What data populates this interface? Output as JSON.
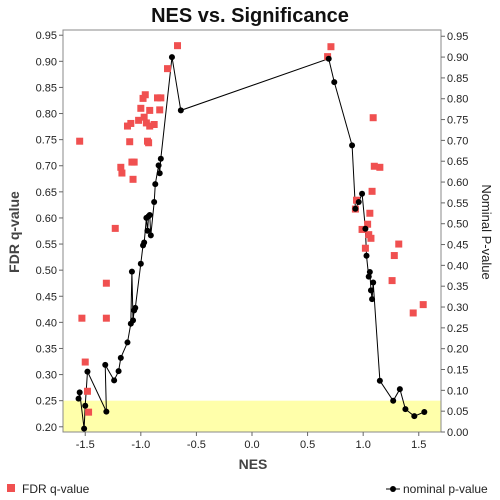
{
  "chart_data": {
    "type": "scatter",
    "title": "NES vs. Significance",
    "xlabel": "NES",
    "ylabel": "FDR q-value",
    "ylabel_right": "Nominal P-value",
    "xlim": [
      -1.7,
      1.7
    ],
    "ylim_left": [
      0.19,
      0.96
    ],
    "ylim_right": [
      0.0,
      0.965
    ],
    "x_ticks": [
      "-1.5",
      "-1.0",
      "-0.5",
      "0.0",
      "0.5",
      "1.0",
      "1.5"
    ],
    "y_left_ticks": [
      "0.20",
      "0.25",
      "0.30",
      "0.35",
      "0.40",
      "0.45",
      "0.50",
      "0.55",
      "0.60",
      "0.65",
      "0.70",
      "0.75",
      "0.80",
      "0.85",
      "0.90",
      "0.95"
    ],
    "y_right_ticks": [
      "0.00",
      "0.05",
      "0.10",
      "0.15",
      "0.20",
      "0.25",
      "0.30",
      "0.35",
      "0.40",
      "0.45",
      "0.50",
      "0.55",
      "0.60",
      "0.65",
      "0.70",
      "0.75",
      "0.80",
      "0.85",
      "0.90",
      "0.95"
    ],
    "grid": false,
    "highlight_band": {
      "y_left_from": 0.19,
      "y_left_to": 0.25,
      "color": "#ffffaa"
    },
    "legend_position": "bottom",
    "series": [
      {
        "name": "FDR q-value",
        "axis": "left",
        "style": "square",
        "color": "#f05050",
        "points": [
          [
            -1.55,
            0.747
          ],
          [
            -1.53,
            0.408
          ],
          [
            -1.5,
            0.324
          ],
          [
            -1.48,
            0.268
          ],
          [
            -1.47,
            0.228
          ],
          [
            -1.31,
            0.475
          ],
          [
            -1.31,
            0.408
          ],
          [
            -1.23,
            0.58
          ],
          [
            -1.18,
            0.697
          ],
          [
            -1.17,
            0.686
          ],
          [
            -1.12,
            0.776
          ],
          [
            -1.1,
            0.746
          ],
          [
            -1.09,
            0.781
          ],
          [
            -1.08,
            0.707
          ],
          [
            -1.07,
            0.674
          ],
          [
            -1.06,
            0.707
          ],
          [
            -1.02,
            0.787
          ],
          [
            -1.0,
            0.81
          ],
          [
            -0.98,
            0.829
          ],
          [
            -0.96,
            0.836
          ],
          [
            -0.97,
            0.793
          ],
          [
            -0.95,
            0.782
          ],
          [
            -0.94,
            0.747
          ],
          [
            -0.93,
            0.744
          ],
          [
            -0.92,
            0.806
          ],
          [
            -0.92,
            0.776
          ],
          [
            -0.88,
            0.779
          ],
          [
            -0.85,
            0.83
          ],
          [
            -0.83,
            0.807
          ],
          [
            -0.82,
            0.83
          ],
          [
            -0.76,
            0.886
          ],
          [
            -0.67,
            0.93
          ],
          [
            0.68,
            0.909
          ],
          [
            0.71,
            0.928
          ],
          [
            0.93,
            0.617
          ],
          [
            0.94,
            0.634
          ],
          [
            0.99,
            0.578
          ],
          [
            1.02,
            0.542
          ],
          [
            1.04,
            0.588
          ],
          [
            1.05,
            0.568
          ],
          [
            1.06,
            0.609
          ],
          [
            1.07,
            0.561
          ],
          [
            1.08,
            0.651
          ],
          [
            1.09,
            0.792
          ],
          [
            1.1,
            0.699
          ],
          [
            1.15,
            0.697
          ],
          [
            1.26,
            0.48
          ],
          [
            1.28,
            0.528
          ],
          [
            1.32,
            0.55
          ],
          [
            1.45,
            0.418
          ],
          [
            1.54,
            0.434
          ]
        ]
      },
      {
        "name": "nominal p-value",
        "axis": "right",
        "style": "line-dot",
        "color": "#000000",
        "points": [
          [
            -1.56,
            0.08
          ],
          [
            -1.55,
            0.095
          ],
          [
            -1.51,
            0.008
          ],
          [
            -1.5,
            0.063
          ],
          [
            -1.48,
            0.145
          ],
          [
            -1.31,
            0.049
          ],
          [
            -1.32,
            0.161
          ],
          [
            -1.24,
            0.124
          ],
          [
            -1.2,
            0.146
          ],
          [
            -1.18,
            0.178
          ],
          [
            -1.12,
            0.215
          ],
          [
            -1.09,
            0.26
          ],
          [
            -1.08,
            0.385
          ],
          [
            -1.07,
            0.268
          ],
          [
            -1.06,
            0.292
          ],
          [
            -1.05,
            0.298
          ],
          [
            -1.0,
            0.404
          ],
          [
            -0.98,
            0.448
          ],
          [
            -0.97,
            0.455
          ],
          [
            -0.95,
            0.514
          ],
          [
            -0.94,
            0.483
          ],
          [
            -0.93,
            0.518
          ],
          [
            -0.92,
            0.521
          ],
          [
            -0.91,
            0.472
          ],
          [
            -0.88,
            0.552
          ],
          [
            -0.87,
            0.595
          ],
          [
            -0.84,
            0.64
          ],
          [
            -0.83,
            0.621
          ],
          [
            -0.82,
            0.656
          ],
          [
            -0.72,
            0.9
          ],
          [
            -0.64,
            0.772
          ],
          [
            0.69,
            0.896
          ],
          [
            0.74,
            0.84
          ],
          [
            0.9,
            0.688
          ],
          [
            0.93,
            0.536
          ],
          [
            0.96,
            0.552
          ],
          [
            0.99,
            0.572
          ],
          [
            1.02,
            0.488
          ],
          [
            1.03,
            0.423
          ],
          [
            1.05,
            0.373
          ],
          [
            1.06,
            0.384
          ],
          [
            1.07,
            0.34
          ],
          [
            1.08,
            0.319
          ],
          [
            1.09,
            0.359
          ],
          [
            1.15,
            0.123
          ],
          [
            1.27,
            0.075
          ],
          [
            1.33,
            0.103
          ],
          [
            1.38,
            0.055
          ],
          [
            1.46,
            0.038
          ],
          [
            1.55,
            0.048
          ]
        ]
      }
    ]
  },
  "legend": {
    "left_label": "FDR q-value",
    "right_label": "nominal p-value"
  }
}
